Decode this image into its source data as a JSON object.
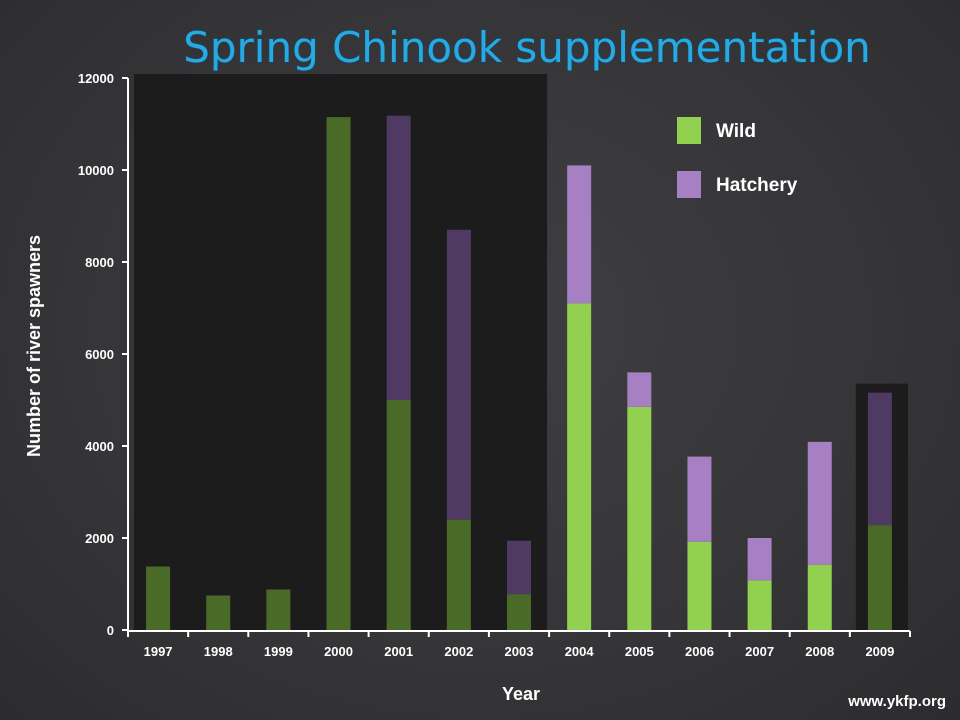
{
  "source": "www.ykfp.org",
  "colors": {
    "wild": "#92d050",
    "hatchery": "#a77fc3",
    "wild_dimmed": "#4a6b28",
    "hatchery_dimmed": "#4e3a62",
    "shade": "#1c1c1c",
    "title": "#2aa8e0"
  },
  "chart_data": {
    "type": "bar",
    "stacked": true,
    "title": "Spring Chinook supplementation",
    "xlabel": "Year",
    "ylabel": "Number of river spawners",
    "ylim": [
      0,
      12000
    ],
    "yticks": [
      0,
      2000,
      4000,
      6000,
      8000,
      10000,
      12000
    ],
    "categories": [
      "1997",
      "1998",
      "1999",
      "2000",
      "2001",
      "2002",
      "2003",
      "2004",
      "2005",
      "2006",
      "2007",
      "2008",
      "2009"
    ],
    "series": [
      {
        "name": "Wild",
        "values": [
          1380,
          750,
          880,
          11150,
          5000,
          2400,
          780,
          7100,
          4850,
          1920,
          1080,
          1420,
          2280
        ]
      },
      {
        "name": "Hatchery",
        "values": [
          0,
          0,
          0,
          0,
          6180,
          6300,
          1160,
          3000,
          750,
          1850,
          920,
          2670,
          2880
        ]
      }
    ],
    "highlighted_periods": [
      {
        "from": "1997",
        "to": "2003"
      },
      {
        "from": "2009",
        "to": "2009"
      }
    ],
    "legend": {
      "placement": "top-right",
      "entries": [
        "Wild",
        "Hatchery"
      ]
    }
  }
}
